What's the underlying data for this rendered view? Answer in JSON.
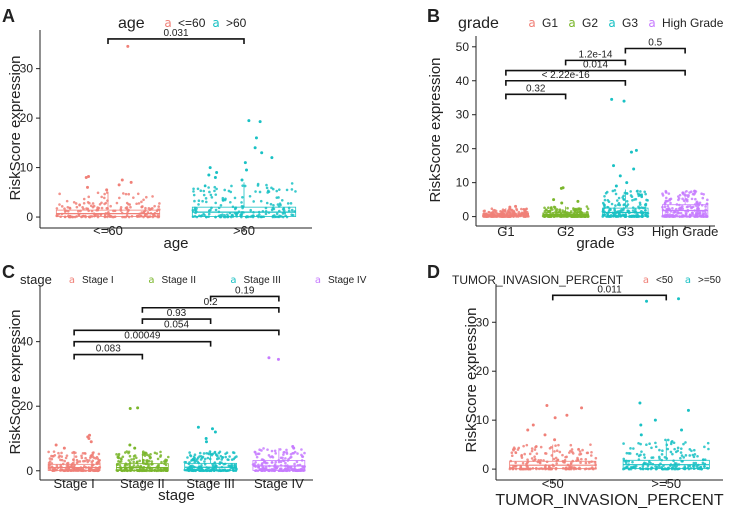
{
  "colors": {
    "red": "#f08078",
    "green": "#7ab62b",
    "cyan": "#19c1c4",
    "purple": "#c77cff"
  },
  "chart_data": [
    {
      "panel": "A",
      "type": "scatter",
      "title": "",
      "legend_title": "age",
      "legend": [
        "<=60",
        ">60"
      ],
      "categories": [
        "<=60",
        ">60"
      ],
      "xlabel": "age",
      "ylabel": "RiskScore expression",
      "ylim": [
        -1,
        37
      ],
      "yticks": [
        0,
        10,
        20,
        30
      ],
      "series": [
        {
          "name": "<=60",
          "color": "red",
          "median": 0.7,
          "q3": 1.4,
          "max_typical": 5,
          "outliers": [
            8,
            7.5,
            7,
            6.5,
            6,
            5.5,
            8.2,
            34.5
          ]
        },
        {
          "name": ">60",
          "color": "cyan",
          "median": 1.0,
          "q3": 2.0,
          "max_typical": 7,
          "outliers": [
            19.5,
            19.3,
            16,
            14,
            13,
            12,
            11,
            10,
            9.5,
            9,
            8.5,
            8,
            7.5
          ]
        }
      ],
      "comparisons": [
        {
          "groups": [
            0,
            1
          ],
          "label": "0.031",
          "y": 36
        }
      ]
    },
    {
      "panel": "B",
      "type": "scatter",
      "title": "",
      "legend_title": "grade",
      "legend": [
        "G1",
        "G2",
        "G3",
        "High Grade"
      ],
      "categories": [
        "G1",
        "G2",
        "G3",
        "High Grade"
      ],
      "xlabel": "grade",
      "ylabel": "RiskScore expression",
      "ylim": [
        -1,
        52
      ],
      "yticks": [
        0,
        10,
        20,
        30,
        40,
        50
      ],
      "series": [
        {
          "name": "G1",
          "color": "red",
          "median": 0.5,
          "q3": 1.0,
          "max_typical": 2.5,
          "outliers": [
            3,
            2.8
          ]
        },
        {
          "name": "G2",
          "color": "green",
          "median": 0.6,
          "q3": 1.1,
          "max_typical": 3,
          "outliers": [
            8.5,
            8.3,
            5,
            4.5,
            4
          ]
        },
        {
          "name": "G3",
          "color": "cyan",
          "median": 1.2,
          "q3": 2.5,
          "max_typical": 8,
          "outliers": [
            34.5,
            34,
            19.5,
            19,
            15,
            14,
            12,
            10,
            9
          ]
        },
        {
          "name": "High Grade",
          "color": "purple",
          "median": 1.8,
          "q3": 3.5,
          "max_typical": 7.5,
          "outliers": [
            7.5,
            7
          ]
        }
      ],
      "comparisons": [
        {
          "groups": [
            0,
            1
          ],
          "label": "0.32",
          "y": 36
        },
        {
          "groups": [
            0,
            2
          ],
          "label": "< 2.22e-16",
          "y": 40
        },
        {
          "groups": [
            0,
            3
          ],
          "label": "0.014",
          "y": 43
        },
        {
          "groups": [
            1,
            2
          ],
          "label": "1.2e-14",
          "y": 46
        },
        {
          "groups": [
            2,
            3
          ],
          "label": "0.5",
          "y": 49.5
        }
      ]
    },
    {
      "panel": "C",
      "type": "scatter",
      "title": "",
      "legend_title": "stage",
      "legend": [
        "Stage I",
        "Stage II",
        "Stage III",
        "Stage IV"
      ],
      "categories": [
        "Stage I",
        "Stage II",
        "Stage III",
        "Stage IV"
      ],
      "xlabel": "stage",
      "ylabel": "RiskScore expression",
      "ylim": [
        -1,
        56
      ],
      "yticks": [
        0,
        20,
        40
      ],
      "series": [
        {
          "name": "Stage I",
          "color": "red",
          "median": 1.0,
          "q3": 2.0,
          "max_typical": 6,
          "outliers": [
            11,
            10.5,
            10,
            9,
            8,
            7
          ]
        },
        {
          "name": "Stage II",
          "color": "green",
          "median": 1.0,
          "q3": 2.2,
          "max_typical": 6,
          "outliers": [
            19.5,
            19.3,
            8,
            7
          ]
        },
        {
          "name": "Stage III",
          "color": "cyan",
          "median": 1.1,
          "q3": 2.3,
          "max_typical": 6,
          "outliers": [
            13.5,
            13,
            12,
            10,
            9
          ]
        },
        {
          "name": "Stage IV",
          "color": "purple",
          "median": 1.5,
          "q3": 3.2,
          "max_typical": 7,
          "outliers": [
            35,
            34.5,
            7.5,
            7
          ]
        }
      ],
      "comparisons": [
        {
          "groups": [
            0,
            1
          ],
          "label": "0.083",
          "y": 36
        },
        {
          "groups": [
            0,
            2
          ],
          "label": "0.00049",
          "y": 40
        },
        {
          "groups": [
            0,
            3
          ],
          "label": "0.054",
          "y": 43.5
        },
        {
          "groups": [
            1,
            2
          ],
          "label": "0.93",
          "y": 47
        },
        {
          "groups": [
            1,
            3
          ],
          "label": "0.2",
          "y": 50.5
        },
        {
          "groups": [
            2,
            3
          ],
          "label": "0.19",
          "y": 54
        }
      ]
    },
    {
      "panel": "D",
      "type": "scatter",
      "title": "",
      "legend_title": "TUMOR_INVASION_PERCENT",
      "legend": [
        "<50",
        ">=50"
      ],
      "categories": [
        "<50",
        ">=50"
      ],
      "xlabel": "TUMOR_INVASION_PERCENT",
      "ylabel": "RiskScore expression",
      "ylim": [
        -1,
        37
      ],
      "yticks": [
        0,
        10,
        20,
        30
      ],
      "series": [
        {
          "name": "<50",
          "color": "red",
          "median": 0.8,
          "q3": 1.6,
          "max_typical": 5,
          "outliers": [
            13,
            12.5,
            11,
            10.5,
            9,
            8,
            7,
            6
          ]
        },
        {
          "name": ">=50",
          "color": "cyan",
          "median": 0.9,
          "q3": 1.8,
          "max_typical": 6,
          "outliers": [
            34.8,
            34.3,
            13.5,
            12,
            10,
            9,
            8,
            7
          ]
        }
      ],
      "comparisons": [
        {
          "groups": [
            0,
            1
          ],
          "label": "0.011",
          "y": 35.5
        }
      ]
    }
  ],
  "panel_labels": [
    "A",
    "B",
    "C",
    "D"
  ]
}
